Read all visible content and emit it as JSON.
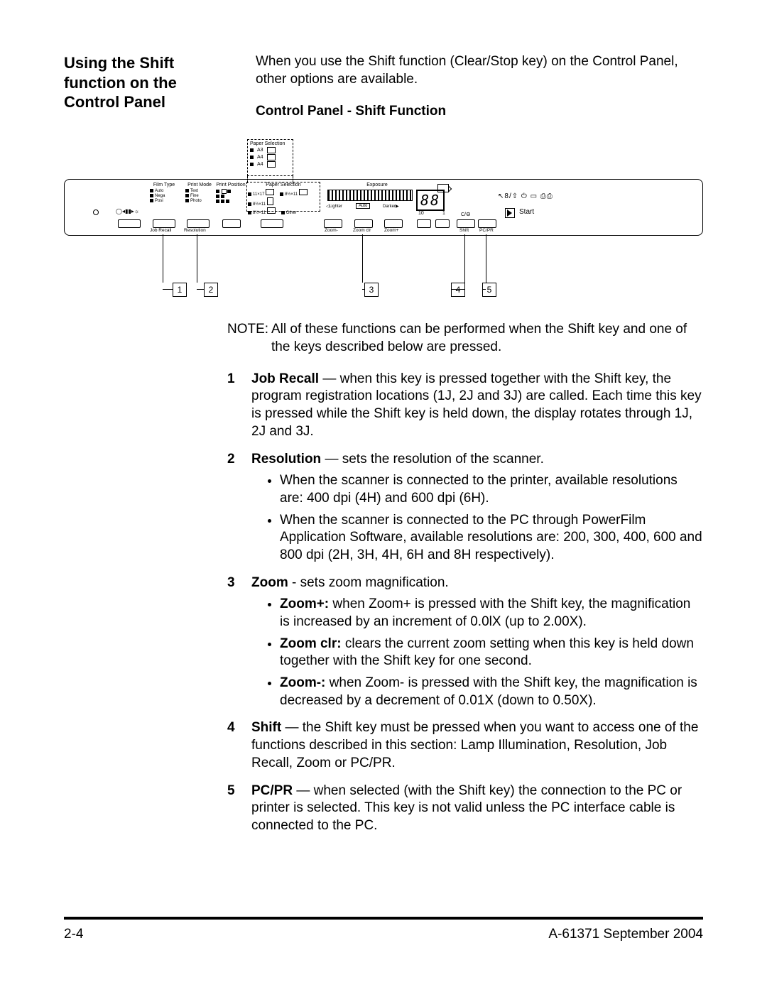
{
  "heading": "Using the Shift function on the Control Panel",
  "intro": "When you use the Shift function (Clear/Stop key) on the Control Panel, other options are available.",
  "sub_heading": "Control Panel - Shift Function",
  "paper_selection": {
    "title": "Paper Selection",
    "rows": [
      "A3",
      "A4",
      "A4"
    ]
  },
  "panel": {
    "film_type": {
      "title": "Film Type",
      "items": [
        "Auto",
        "Nega",
        "Posi"
      ]
    },
    "print_mode": {
      "title": "Print Mode",
      "items": [
        "Text",
        "Fine",
        "Photo"
      ]
    },
    "print_position": {
      "title": "Print Position"
    },
    "paper_sel": {
      "title": "Paper Selection",
      "items": [
        "11×17",
        "8½×11",
        "8½×11"
      ],
      "right_items": [
        "8½×11",
        "",
        "Other"
      ]
    },
    "exposure": {
      "title": "Exposure",
      "lighter": "Lighter",
      "auto": "Auto",
      "darker": "Darker"
    },
    "digits": "88",
    "counter_lo": "10",
    "counter_hi": "1",
    "c_label": "C/",
    "start_label": "Start",
    "symbols": "↖8/⇧ ⏻ ▭ ⎙⎙",
    "under_labels": {
      "job_recall": "Job Recall",
      "resolution": "Resolution",
      "zoom_minus": "Zoom-",
      "zoom_clr": "Zoom clr",
      "zoom_plus": "Zoom+",
      "shift": "Shift",
      "pcpr": "PC/PR"
    }
  },
  "callouts": [
    "1",
    "2",
    "3",
    "4",
    "5"
  ],
  "note_label": "NOTE:",
  "note_text": "All of these functions can be performed when the Shift key and one of the keys described below are pressed.",
  "items": [
    {
      "num": "1",
      "title": "Job Recall",
      "dash": " — ",
      "text": "when this key is pressed together with the Shift key, the program registration locations (1J, 2J and 3J) are called. Each time this key is pressed while the Shift key is held down, the display rotates through 1J, 2J and 3J."
    },
    {
      "num": "2",
      "title": "Resolution",
      "dash": " — ",
      "text": "sets the resolution of the scanner.",
      "bullets": [
        "When the scanner is connected to the printer, available resolutions are: 400 dpi (4H) and 600 dpi (6H).",
        "When the scanner is connected to the PC through PowerFilm Application Software, available resolutions are: 200, 300, 400, 600 and 800 dpi (2H, 3H, 4H, 6H and 8H respectively)."
      ]
    },
    {
      "num": "3",
      "title": "Zoom",
      "dash": " - ",
      "text": "sets zoom magnification.",
      "rich_bullets": [
        {
          "b": "Zoom+:",
          "t": " when Zoom+ is pressed with the Shift key, the magnification is increased by an increment of 0.0lX (up to 2.00X)."
        },
        {
          "b": "Zoom clr:",
          "t": " clears the current zoom setting when this key is held down together with the Shift key for one second."
        },
        {
          "b": "Zoom-:",
          "t": " when Zoom- is pressed with the Shift key, the magnification is decreased by a decrement of 0.01X (down to 0.50X)."
        }
      ]
    },
    {
      "num": "4",
      "title": "Shift",
      "dash": " — ",
      "text": "the Shift key must be pressed when you want to access one of the functions described in this section: Lamp Illumination, Resolution, Job Recall, Zoom or PC/PR."
    },
    {
      "num": "5",
      "title": "PC/PR",
      "dash": " — ",
      "text": "when selected (with the Shift key) the connection to the PC or printer is selected. This key is not valid unless the PC interface cable is connected to the PC."
    }
  ],
  "footer_left": "2-4",
  "footer_right": "A-61371  September 2004"
}
